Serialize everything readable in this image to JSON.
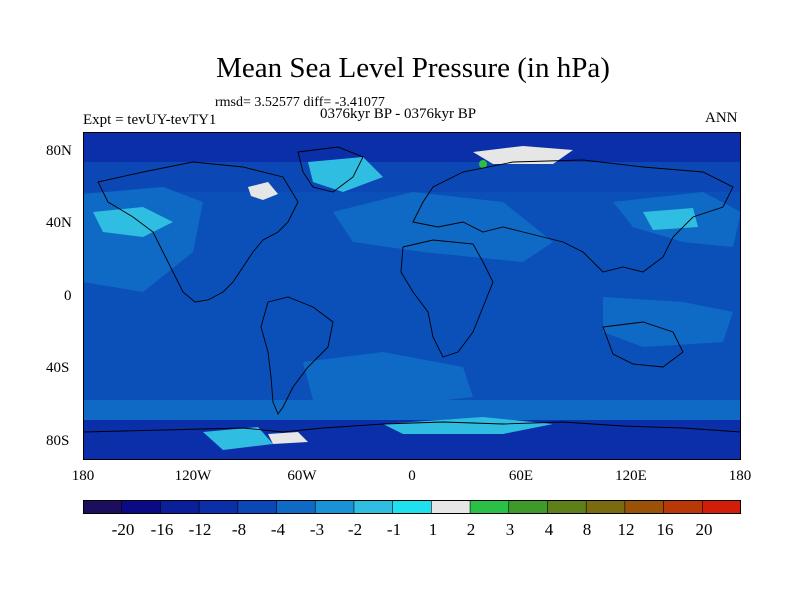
{
  "title": "Mean Sea Level Pressure (in hPa)",
  "stats": "rmsd= 3.52577 diff= -3.41077",
  "period": "0376kyr BP - 0376kyr BP",
  "experiment": "Expt = tevUY-tevTY1",
  "season": "ANN",
  "lat_labels": [
    "80N",
    "40N",
    "0",
    "40S",
    "80S"
  ],
  "lon_labels": [
    "180",
    "120W",
    "60W",
    "0",
    "60E",
    "120E",
    "180"
  ],
  "colorbar": {
    "labels": [
      "-20",
      "-16",
      "-12",
      "-8",
      "-4",
      "-3",
      "-2",
      "-1",
      "1",
      "2",
      "3",
      "4",
      "8",
      "12",
      "16",
      "20"
    ],
    "colors": [
      "#1c0e5e",
      "#0a0a86",
      "#0b1f9a",
      "#0a2fa8",
      "#0c48b5",
      "#0f6ac6",
      "#1a93d6",
      "#2fbde2",
      "#1ee0ef",
      "#e6e6e6",
      "#2bbf47",
      "#3f9a2a",
      "#5e7f1a",
      "#7a6a10",
      "#9a5208",
      "#b83808",
      "#d21e08"
    ]
  },
  "colors": {
    "ocean_base": "#0b4fb9",
    "land_base": "#0c56bd",
    "light_band": "#0f6ac6",
    "cyan": "#2fbde2",
    "bright_cyan": "#1ee0ef",
    "deep": "#0a2fa8",
    "near_zero": "#e6e6e6",
    "coast": "#000000"
  }
}
